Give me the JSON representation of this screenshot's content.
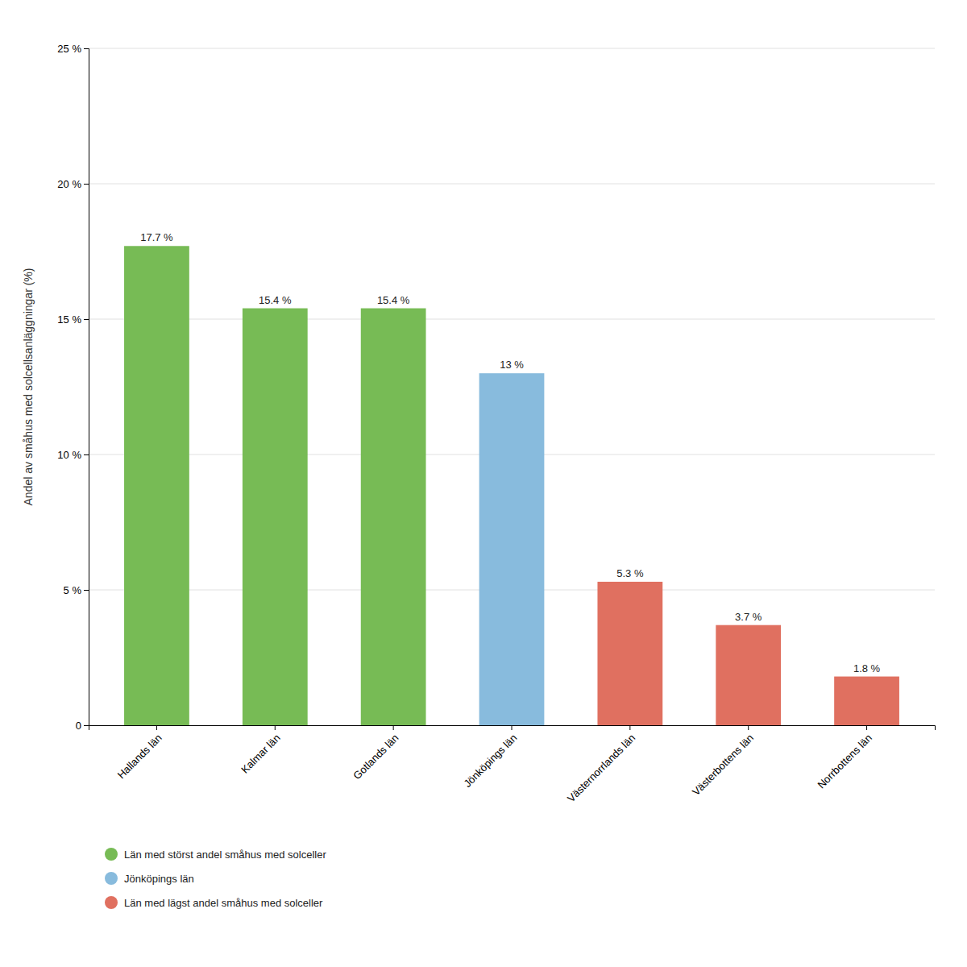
{
  "chart_data": {
    "type": "bar",
    "categories": [
      "Hallands län",
      "Kalmar län",
      "Gotlands län",
      "Jönköpings län",
      "Västernorrlands län",
      "Västerbottens län",
      "Norrbottens län"
    ],
    "values": [
      17.7,
      15.4,
      15.4,
      13.0,
      5.3,
      3.7,
      1.8
    ],
    "value_labels": [
      "17.7 %",
      "15.4 %",
      "15.4 %",
      "13 %",
      "5.3 %",
      "3.7 %",
      "1.8 %"
    ],
    "colors": [
      "#77BB55",
      "#77BB55",
      "#77BB55",
      "#88BBDD",
      "#E07060",
      "#E07060",
      "#E07060"
    ],
    "ylabel": "Andel av småhus med solcellsanläggningar (%)",
    "ylim": [
      0,
      25
    ],
    "yticks": [
      0,
      {
        "value": 5,
        "label": "5 %"
      },
      {
        "value": 10,
        "label": "10 %"
      },
      {
        "value": 15,
        "label": "15 %"
      },
      {
        "value": 20,
        "label": "20 %"
      },
      {
        "value": 25,
        "label": "25 %"
      }
    ],
    "grid": true,
    "data_labels": true,
    "legend": "bottom",
    "legend_items": [
      {
        "label": "Län med störst andel småhus med solceller",
        "color": "#77BB55"
      },
      {
        "label": "Jönköpings län",
        "color": "#88BBDD"
      },
      {
        "label": "Län med lägst andel småhus med solceller",
        "color": "#E07060"
      }
    ]
  }
}
